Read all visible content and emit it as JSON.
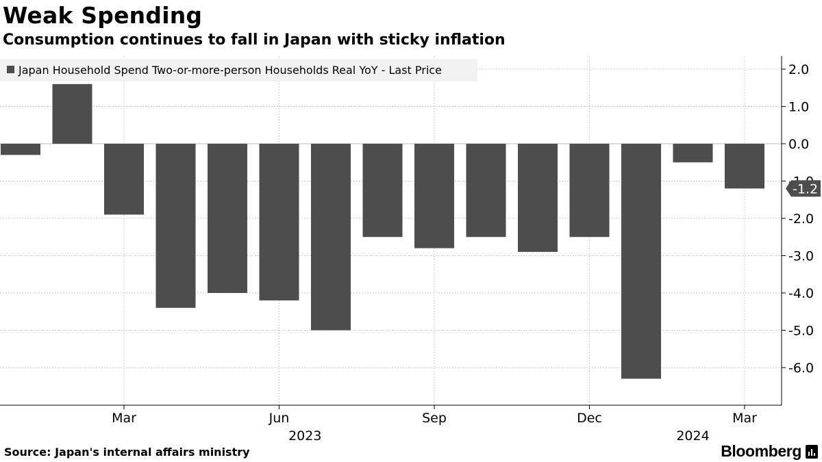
{
  "header": {
    "title": "Weak Spending",
    "subtitle": "Consumption continues to fall in Japan with sticky inflation"
  },
  "chart_data": {
    "type": "bar",
    "legend": "Japan Household Spend Two-or-more-person Households Real YoY - Last Price",
    "legend_position": "top-left",
    "categories": [
      "Jan 2023",
      "Feb 2023",
      "Mar 2023",
      "Apr 2023",
      "May 2023",
      "Jun 2023",
      "Jul 2023",
      "Aug 2023",
      "Sep 2023",
      "Oct 2023",
      "Nov 2023",
      "Dec 2023",
      "Jan 2024",
      "Feb 2024",
      "Mar 2024"
    ],
    "values": [
      -0.3,
      1.6,
      -1.9,
      -4.4,
      -4.0,
      -4.2,
      -5.0,
      -2.5,
      -2.8,
      -2.5,
      -2.9,
      -2.5,
      -6.3,
      -0.5,
      -1.2
    ],
    "ylim": [
      -7.0,
      2.3
    ],
    "yticks": [
      "2.0",
      "1.0",
      "0.0",
      "-1.0",
      "-2.0",
      "-3.0",
      "-4.0",
      "-5.0",
      "-6.0"
    ],
    "ytick_values": [
      2,
      1,
      0,
      -1,
      -2,
      -3,
      -4,
      -5,
      -6
    ],
    "xticks": [
      {
        "index": 2,
        "label": "Mar"
      },
      {
        "index": 5,
        "label": "Jun"
      },
      {
        "index": 8,
        "label": "Sep"
      },
      {
        "index": 11,
        "label": "Dec"
      },
      {
        "index": 14,
        "label": "Mar"
      }
    ],
    "year_labels": [
      {
        "index": 5.5,
        "label": "2023"
      },
      {
        "index": 13,
        "label": "2024"
      }
    ],
    "last_value_label": "-1.2",
    "grid": true,
    "bar_color": "#4d4d4d",
    "grid_color": "#cccccc"
  },
  "footer": {
    "source": "Source: Japan's internal affairs ministry",
    "brand": "Bloomberg"
  }
}
